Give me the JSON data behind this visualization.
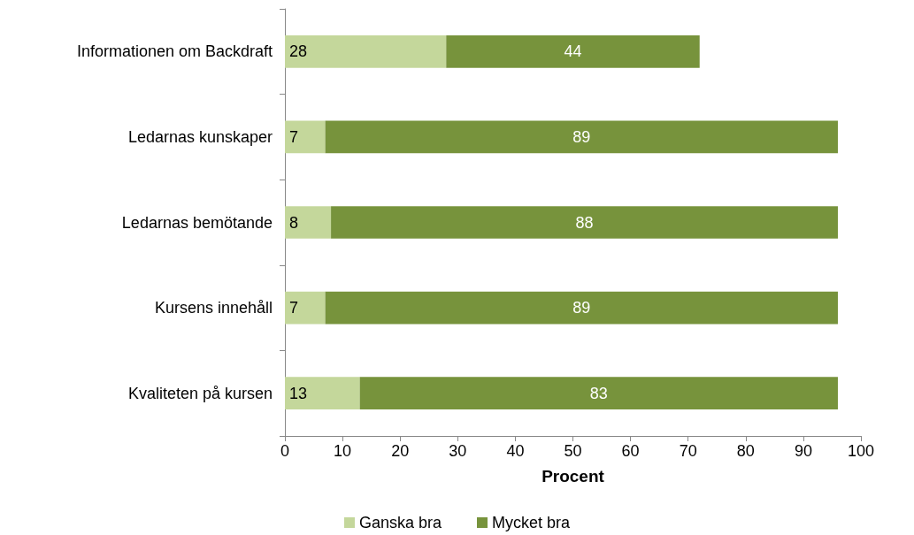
{
  "chart_data": {
    "type": "bar",
    "orientation": "horizontal",
    "stacked": true,
    "xlabel": "Procent",
    "categories": [
      "Informationen om Backdraft",
      "Ledarnas kunskaper",
      "Ledarnas bemötande",
      "Kursens innehåll",
      "Kvaliteten på kursen"
    ],
    "series": [
      {
        "name": "Ganska bra",
        "color": "#c4d79b",
        "values": [
          28,
          7,
          8,
          7,
          13
        ]
      },
      {
        "name": "Mycket bra",
        "color": "#77933c",
        "values": [
          44,
          89,
          88,
          89,
          83
        ]
      }
    ],
    "xlim": [
      0,
      100
    ],
    "xticks": [
      0,
      10,
      20,
      30,
      40,
      50,
      60,
      70,
      80,
      90,
      100
    ],
    "data_labels": true,
    "grid": false,
    "legend": "bottom"
  }
}
